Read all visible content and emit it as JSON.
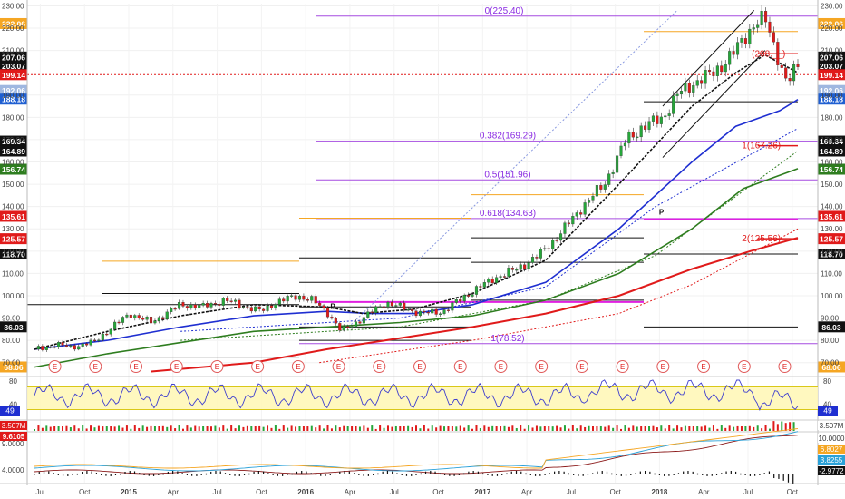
{
  "chart_data": {
    "type": "candlestick",
    "price_axis": {
      "ticks": [
        "230.00",
        "220.00",
        "210.00",
        "190.00",
        "180.00",
        "170.00",
        "160.00",
        "150.00",
        "140.00",
        "130.00",
        "120.00",
        "110.00",
        "100.00",
        "90.00",
        "80.00",
        "70.00"
      ],
      "ylim": [
        65,
        231
      ]
    },
    "time_axis": {
      "ticks": [
        "Jul",
        "Oct",
        "2015",
        "Apr",
        "Jul",
        "Oct",
        "2016",
        "Apr",
        "Jul",
        "Oct",
        "2017",
        "Apr",
        "Jul",
        "Oct",
        "2018",
        "Apr",
        "Jul",
        "Oct"
      ]
    },
    "price_series": [
      {
        "t": 0,
        "p": 76
      },
      {
        "t": 0.3,
        "p": 78
      },
      {
        "t": 0.5,
        "p": 77
      },
      {
        "t": 0.8,
        "p": 79
      },
      {
        "t": 1.3,
        "p": 92
      },
      {
        "t": 1.6,
        "p": 88
      },
      {
        "t": 2.0,
        "p": 96
      },
      {
        "t": 2.3,
        "p": 95
      },
      {
        "t": 2.6,
        "p": 98
      },
      {
        "t": 2.9,
        "p": 95
      },
      {
        "t": 3.1,
        "p": 93
      },
      {
        "t": 3.3,
        "p": 97
      },
      {
        "t": 3.6,
        "p": 100
      },
      {
        "t": 3.8,
        "p": 98
      },
      {
        "t": 4.0,
        "p": 93
      },
      {
        "t": 4.2,
        "p": 84
      },
      {
        "t": 4.5,
        "p": 90
      },
      {
        "t": 4.8,
        "p": 97
      },
      {
        "t": 5.0,
        "p": 95
      },
      {
        "t": 5.3,
        "p": 92
      },
      {
        "t": 5.6,
        "p": 93
      },
      {
        "t": 5.9,
        "p": 100
      },
      {
        "t": 6.1,
        "p": 104
      },
      {
        "t": 6.3,
        "p": 108
      },
      {
        "t": 6.6,
        "p": 112
      },
      {
        "t": 6.9,
        "p": 118
      },
      {
        "t": 7.2,
        "p": 128
      },
      {
        "t": 7.5,
        "p": 140
      },
      {
        "t": 7.8,
        "p": 150
      },
      {
        "t": 8.1,
        "p": 170
      },
      {
        "t": 8.3,
        "p": 175
      },
      {
        "t": 8.6,
        "p": 180
      },
      {
        "t": 8.8,
        "p": 190
      },
      {
        "t": 9.0,
        "p": 195
      },
      {
        "t": 9.3,
        "p": 200
      },
      {
        "t": 9.6,
        "p": 210
      },
      {
        "t": 9.85,
        "p": 222
      },
      {
        "t": 10.0,
        "p": 224
      },
      {
        "t": 10.15,
        "p": 210
      },
      {
        "t": 10.3,
        "p": 195
      },
      {
        "t": 10.45,
        "p": 203
      }
    ],
    "ma_series": [
      {
        "name": "ma-blue",
        "color": "#1f2fd1",
        "points": [
          [
            0,
            76
          ],
          [
            1,
            80
          ],
          [
            2,
            86
          ],
          [
            3,
            91
          ],
          [
            4,
            93
          ],
          [
            4.6,
            92
          ],
          [
            5.2,
            92
          ],
          [
            6,
            96
          ],
          [
            7,
            106
          ],
          [
            8,
            130
          ],
          [
            9,
            160
          ],
          [
            9.6,
            176
          ],
          [
            10.2,
            183
          ],
          [
            10.45,
            188
          ]
        ]
      },
      {
        "name": "ma-black",
        "color": "#111111",
        "points": [
          [
            0,
            76
          ],
          [
            1,
            84
          ],
          [
            2,
            91
          ],
          [
            3,
            96
          ],
          [
            4,
            95
          ],
          [
            4.5,
            92
          ],
          [
            5.2,
            94
          ],
          [
            6,
            101
          ],
          [
            7,
            116
          ],
          [
            8,
            150
          ],
          [
            9,
            185
          ],
          [
            9.6,
            200
          ],
          [
            10,
            208
          ],
          [
            10.45,
            200
          ]
        ]
      },
      {
        "name": "ma-green",
        "color": "#2e7d1f",
        "points": [
          [
            0,
            68
          ],
          [
            1,
            74
          ],
          [
            2,
            79
          ],
          [
            3,
            84
          ],
          [
            4,
            86
          ],
          [
            5,
            88
          ],
          [
            6,
            91
          ],
          [
            7,
            98
          ],
          [
            8,
            110
          ],
          [
            9,
            130
          ],
          [
            9.7,
            148
          ],
          [
            10.45,
            157
          ]
        ]
      },
      {
        "name": "ma-red",
        "color": "#e01a1a",
        "points": [
          [
            1.6,
            66
          ],
          [
            3,
            70
          ],
          [
            4,
            76
          ],
          [
            5,
            81
          ],
          [
            6,
            86
          ],
          [
            7,
            92
          ],
          [
            8,
            100
          ],
          [
            9,
            112
          ],
          [
            9.8,
            120
          ],
          [
            10.45,
            126
          ]
        ]
      }
    ],
    "fib_levels": [
      {
        "label": "0(225.40)",
        "value": 225.4
      },
      {
        "label": "0.382(169.29)",
        "value": 169.29
      },
      {
        "label": "0.5(151.96)",
        "value": 151.96
      },
      {
        "label": "0.618(134.63)",
        "value": 134.63
      },
      {
        "label": "1(78.52)",
        "value": 78.52
      }
    ],
    "level_labels": [
      {
        "label": "(208.__)",
        "value": 208.5
      },
      {
        "label": "1(167.26)",
        "value": 167.26
      },
      {
        "label": "2(125.56)",
        "value": 125.56
      }
    ],
    "right_badges": [
      {
        "text": "222.06",
        "value": 222.06,
        "bg": "#f5a623",
        "fg": "#ffffff"
      },
      {
        "text": "207.06",
        "value": 207.06,
        "bg": "#111111",
        "fg": "#ffffff"
      },
      {
        "text": "203.07",
        "value": 203.07,
        "bg": "#111111",
        "fg": "#ffffff"
      },
      {
        "text": "199.14",
        "value": 199.14,
        "bg": "#e01a1a",
        "fg": "#ffffff"
      },
      {
        "text": "192.06",
        "value": 192.06,
        "bg": "#9fb7e0",
        "fg": "#ffffff"
      },
      {
        "text": "188.18",
        "value": 188.18,
        "bg": "#1f5fd1",
        "fg": "#ffffff"
      },
      {
        "text": "169.34",
        "value": 169.34,
        "bg": "#111111",
        "fg": "#ffffff"
      },
      {
        "text": "164.89",
        "value": 164.89,
        "bg": "#111111",
        "fg": "#ffffff"
      },
      {
        "text": "156.74",
        "value": 156.74,
        "bg": "#2e7d1f",
        "fg": "#ffffff"
      },
      {
        "text": "135.61",
        "value": 135.61,
        "bg": "#e01a1a",
        "fg": "#ffffff"
      },
      {
        "text": "125.57",
        "value": 125.57,
        "bg": "#e01a1a",
        "fg": "#ffffff"
      },
      {
        "text": "118.70",
        "value": 118.7,
        "bg": "#111111",
        "fg": "#ffffff"
      },
      {
        "text": "86.03",
        "value": 86.03,
        "bg": "#111111",
        "fg": "#ffffff"
      },
      {
        "text": "68.06",
        "value": 68.06,
        "bg": "#f5a623",
        "fg": "#ffffff"
      }
    ],
    "earnings_marker": "E",
    "pivot_marker": "P",
    "rsi_panel": {
      "ticks": [
        "80",
        "40"
      ],
      "current": "49",
      "ylim": [
        15,
        85
      ]
    },
    "volume_badges": [
      {
        "text": "3.507M",
        "bg": "#e01a1a"
      },
      {
        "text": "3.507M",
        "bg": "#ffffff"
      }
    ],
    "macd_panel": {
      "ticks": [
        "9.0000",
        "4.0000"
      ],
      "left_badge": "9.6105",
      "right_badges": [
        {
          "text": "10.0000",
          "bg": "#ffffff",
          "fg": "#333333"
        },
        {
          "text": "6.8027",
          "bg": "#f5a623",
          "fg": "#ffffff"
        },
        {
          "text": "3.8255",
          "bg": "#2aa1d8",
          "fg": "#ffffff"
        },
        {
          "text": "-2.9772",
          "bg": "#111111",
          "fg": "#ffffff"
        }
      ]
    }
  }
}
